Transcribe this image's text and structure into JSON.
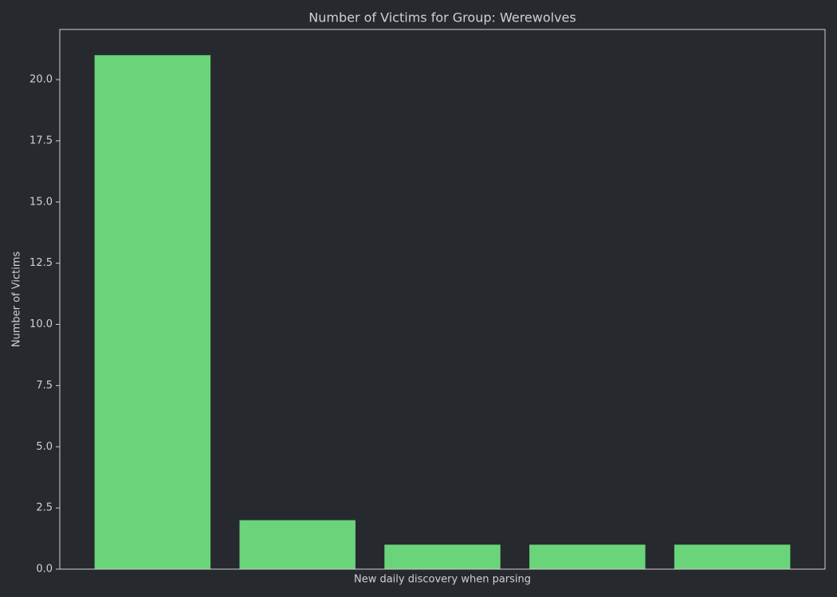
{
  "chart_data": {
    "type": "bar",
    "title": "Number of Victims for Group: Werewolves",
    "x_label": "New daily discovery when parsing",
    "y_label": "Number of Victims",
    "categories": [
      null,
      null,
      null,
      null,
      null
    ],
    "values": [
      21,
      2,
      1,
      1,
      1
    ],
    "color": "#6ad47a",
    "ylim": [
      0,
      22.05
    ],
    "yticks": [
      {
        "value": 0,
        "label": "0.0"
      },
      2.5,
      {
        "value": 5,
        "label": "5.0"
      },
      7.5,
      {
        "value": 10,
        "label": "10.0"
      },
      12.5,
      {
        "value": 15,
        "label": "15.0"
      },
      17.5,
      {
        "value": 20,
        "label": "20.0"
      }
    ],
    "grid": false
  }
}
